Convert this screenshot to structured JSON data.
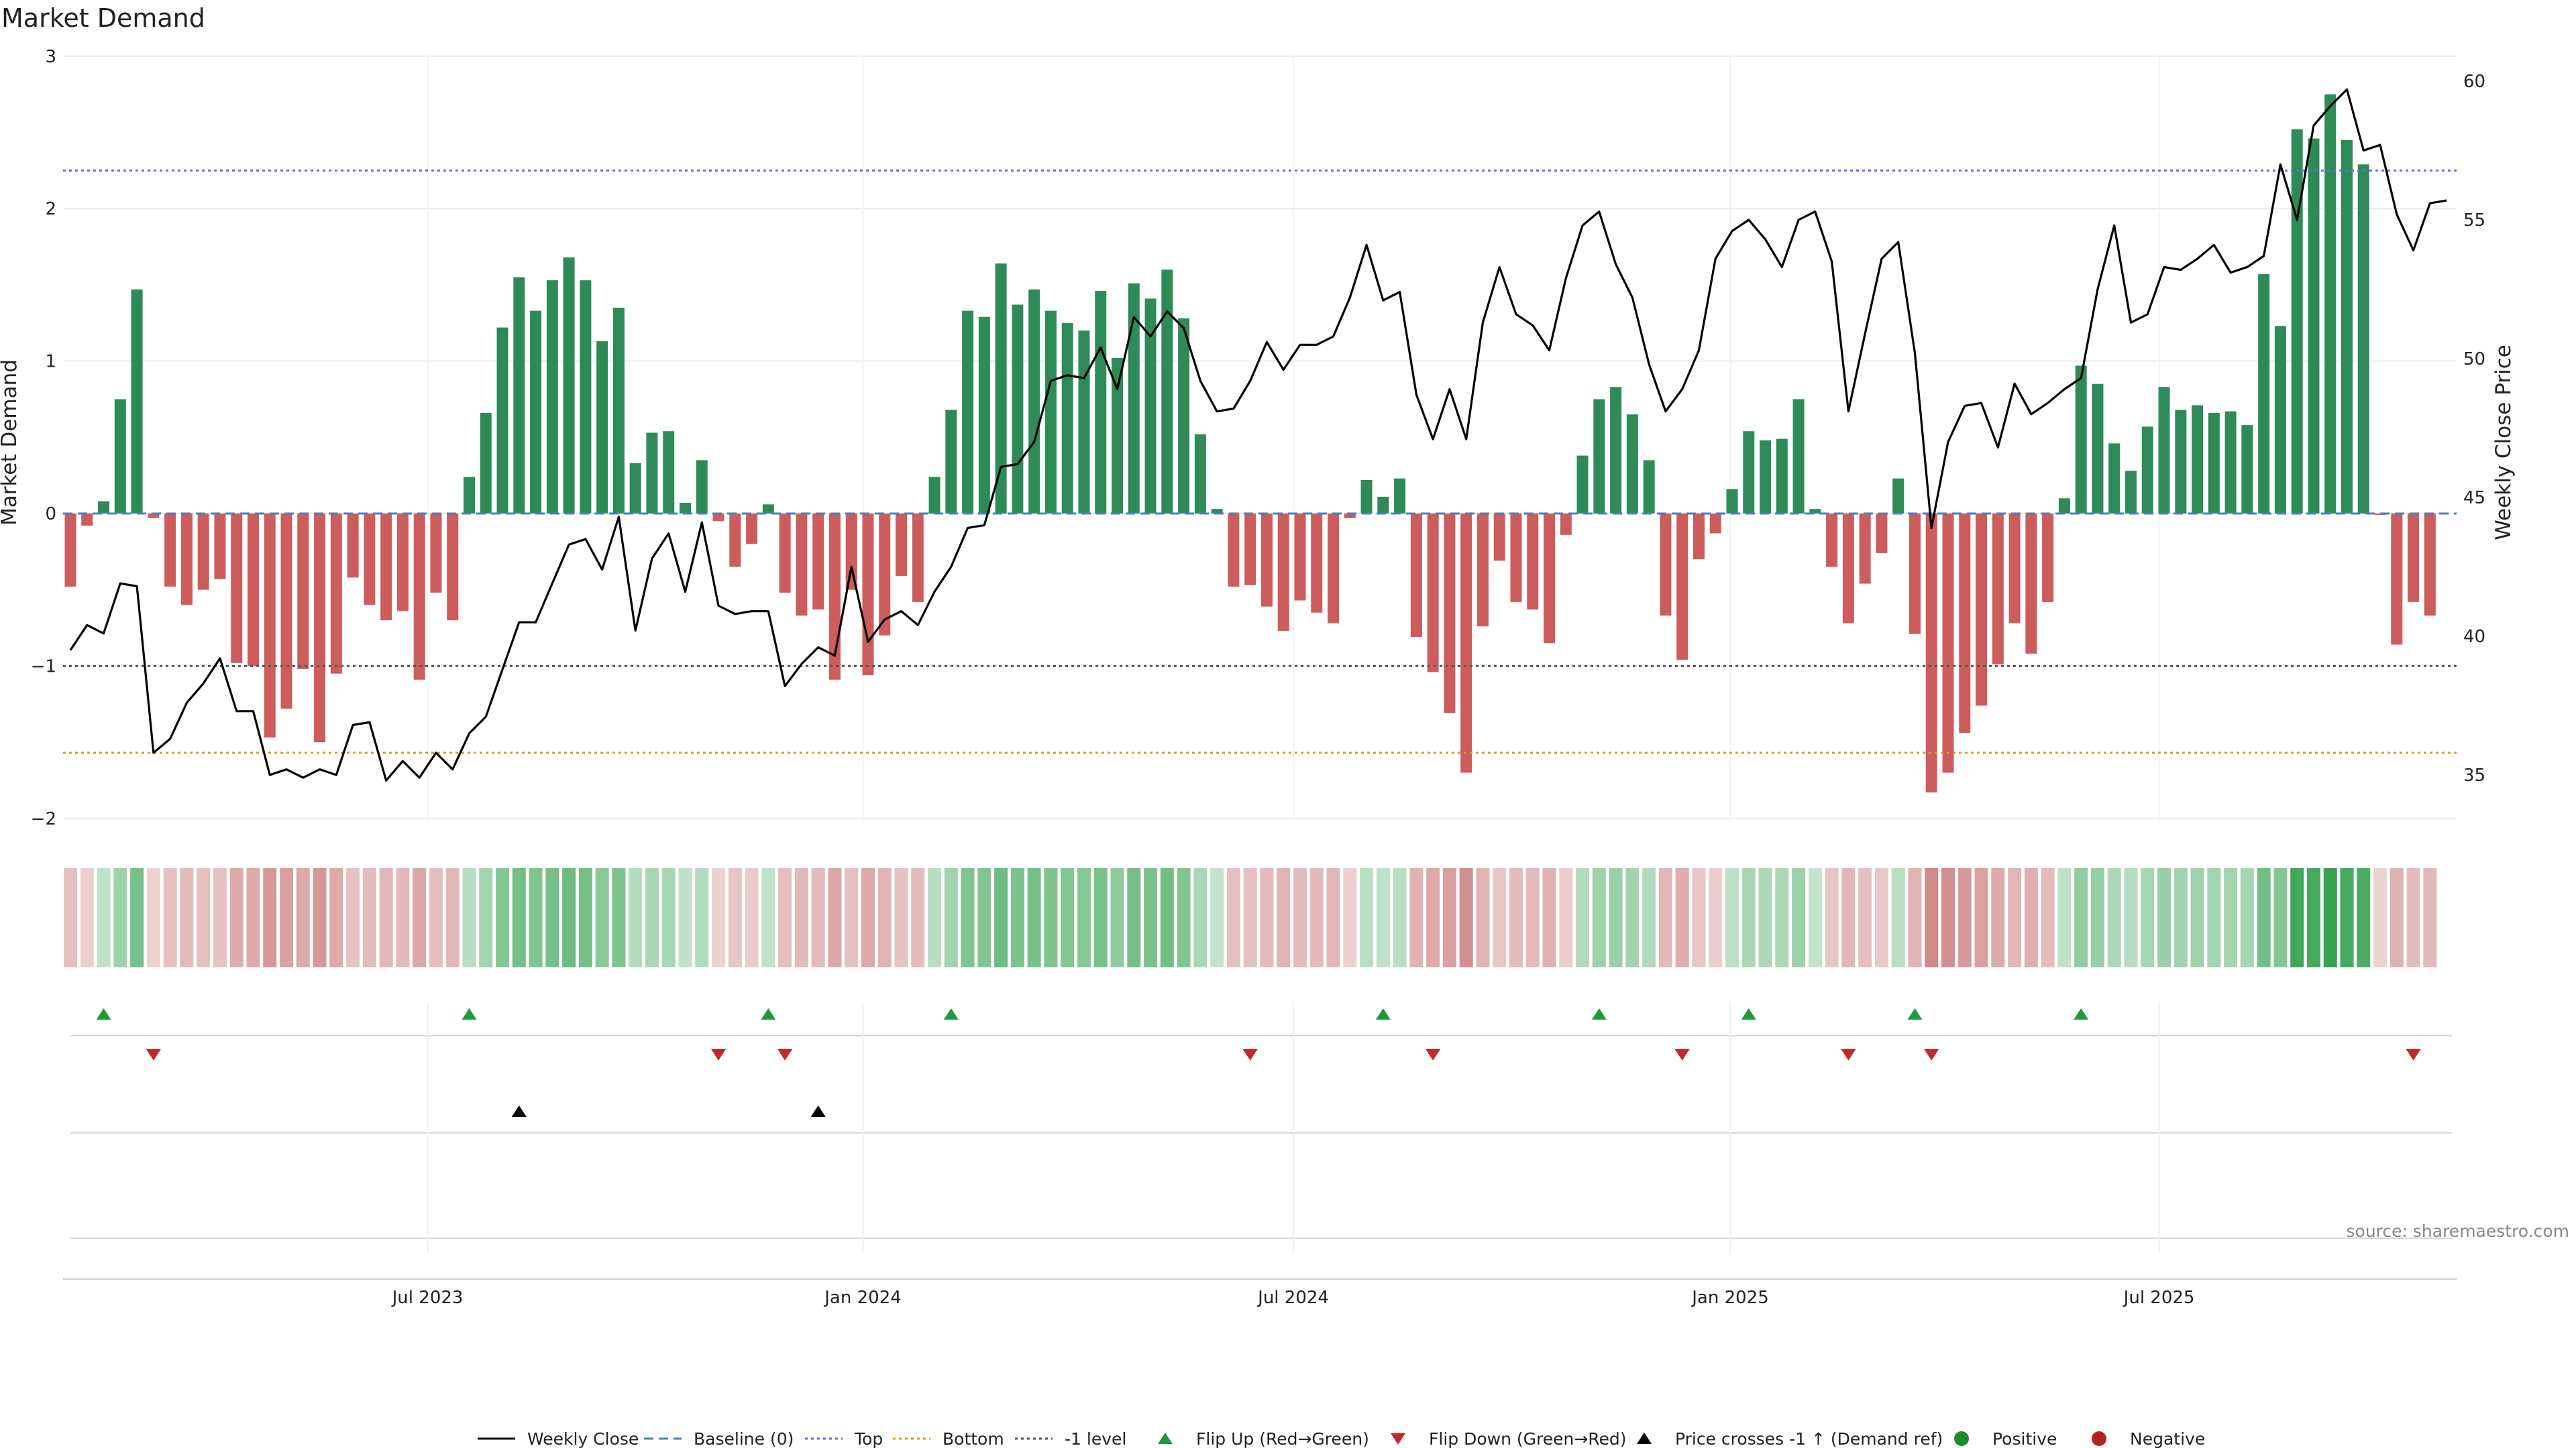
{
  "chart_data": {
    "type": "bar+line",
    "title": "Market Demand",
    "ylabel_left": "Market Demand",
    "ylabel_right": "Weekly Close Price",
    "ylim_left": [
      -2,
      3
    ],
    "ylim_right": [
      33,
      61
    ],
    "yticks_left": [
      {
        "v": 3,
        "label": "3"
      },
      {
        "v": 2,
        "label": "2"
      },
      {
        "v": 1,
        "label": "1"
      },
      {
        "v": 0,
        "label": "0"
      },
      {
        "v": -1,
        "label": "−1"
      },
      {
        "v": -2,
        "label": "−2"
      }
    ],
    "yticks_right": [
      {
        "v": 60,
        "label": "60"
      },
      {
        "v": 55,
        "label": "55"
      },
      {
        "v": 50,
        "label": "50"
      },
      {
        "v": 45,
        "label": "45"
      },
      {
        "v": 40,
        "label": "40"
      },
      {
        "v": 35,
        "label": "35"
      }
    ],
    "x_ticks": [
      {
        "i": 21.5,
        "label": "Jul 2023"
      },
      {
        "i": 47.7,
        "label": "Jan 2024"
      },
      {
        "i": 73.6,
        "label": "Jul 2024"
      },
      {
        "i": 99.9,
        "label": "Jan 2025"
      },
      {
        "i": 125.7,
        "label": "Jul 2025"
      }
    ],
    "reference_lines": {
      "top": 2.25,
      "bottom": -1.57,
      "minus_one": -1,
      "baseline": 0
    },
    "demand": [
      -0.48,
      -0.08,
      0.08,
      0.75,
      1.47,
      -0.03,
      -0.48,
      -0.6,
      -0.5,
      -0.43,
      -0.98,
      -1.0,
      -1.47,
      -1.28,
      -1.02,
      -1.5,
      -1.05,
      -0.42,
      -0.6,
      -0.7,
      -0.64,
      -1.09,
      -0.52,
      -0.7,
      0.24,
      0.66,
      1.22,
      1.55,
      1.33,
      1.53,
      1.68,
      1.53,
      1.13,
      1.35,
      0.33,
      0.53,
      0.54,
      0.07,
      0.35,
      -0.05,
      -0.35,
      -0.2,
      0.06,
      -0.52,
      -0.67,
      -0.63,
      -1.09,
      -0.5,
      -1.06,
      -0.8,
      -0.41,
      -0.58,
      0.24,
      0.68,
      1.33,
      1.29,
      1.64,
      1.37,
      1.47,
      1.33,
      1.25,
      1.2,
      1.46,
      1.02,
      1.51,
      1.41,
      1.6,
      1.28,
      0.52,
      0.03,
      -0.48,
      -0.47,
      -0.61,
      -0.77,
      -0.57,
      -0.65,
      -0.72,
      -0.03,
      0.22,
      0.11,
      0.23,
      -0.81,
      -1.04,
      -1.31,
      -1.7,
      -0.74,
      -0.31,
      -0.58,
      -0.63,
      -0.85,
      -0.14,
      0.38,
      0.75,
      0.83,
      0.65,
      0.35,
      -0.67,
      -0.96,
      -0.3,
      -0.13,
      0.16,
      0.54,
      0.48,
      0.49,
      0.75,
      0.03,
      -0.35,
      -0.72,
      -0.46,
      -0.26,
      0.23,
      -0.79,
      -1.83,
      -1.7,
      -1.44,
      -1.26,
      -0.99,
      -0.72,
      -0.92,
      -0.58,
      0.1,
      0.97,
      0.85,
      0.46,
      0.28,
      0.57,
      0.83,
      0.68,
      0.71,
      0.66,
      0.67,
      0.58,
      1.57,
      1.23,
      2.52,
      2.46,
      2.75,
      2.45,
      2.29,
      -0.01,
      -0.86,
      -0.58,
      -0.67
    ],
    "weekly_close": [
      39.5,
      40.4,
      40.1,
      41.9,
      41.8,
      35.8,
      36.3,
      37.6,
      38.3,
      39.2,
      37.3,
      37.3,
      35.0,
      35.2,
      34.9,
      35.2,
      35.0,
      36.8,
      36.9,
      34.8,
      35.5,
      34.9,
      35.8,
      35.2,
      36.5,
      37.1,
      38.8,
      40.5,
      40.5,
      41.9,
      43.3,
      43.5,
      42.4,
      44.3,
      40.2,
      42.8,
      43.7,
      41.6,
      44.1,
      41.1,
      40.8,
      40.9,
      40.9,
      38.2,
      39.0,
      39.6,
      39.3,
      42.5,
      39.8,
      40.6,
      40.9,
      40.4,
      41.6,
      42.5,
      43.9,
      44.0,
      46.1,
      46.2,
      47.0,
      49.2,
      49.4,
      49.3,
      50.4,
      48.9,
      51.5,
      50.8,
      51.7,
      51.1,
      49.2,
      48.1,
      48.2,
      49.2,
      50.6,
      49.6,
      50.5,
      50.5,
      50.8,
      52.2,
      54.1,
      52.1,
      52.4,
      48.7,
      47.1,
      48.9,
      47.1,
      51.3,
      53.3,
      51.6,
      51.2,
      50.3,
      52.9,
      54.8,
      55.3,
      53.4,
      52.2,
      49.8,
      48.1,
      48.9,
      50.3,
      53.6,
      54.6,
      55.0,
      54.3,
      53.3,
      55.0,
      55.3,
      53.5,
      48.1,
      50.9,
      53.6,
      54.2,
      50.2,
      43.9,
      47.0,
      48.3,
      48.4,
      46.8,
      49.1,
      48.0,
      48.4,
      48.9,
      49.3,
      52.5,
      54.8,
      51.3,
      51.6,
      53.3,
      53.2,
      53.6,
      54.1,
      53.1,
      53.3,
      53.7,
      57.0,
      55.0,
      58.4,
      59.1,
      59.7,
      57.5,
      57.7,
      55.2,
      53.9,
      55.6,
      55.7
    ],
    "signals": {
      "flip_up_idx": [
        2,
        24,
        42,
        53,
        79,
        92,
        101,
        111,
        121
      ],
      "flip_down_idx": [
        5,
        39,
        43,
        71,
        82,
        97,
        107,
        112,
        141
      ],
      "price_cross_idx": [
        27,
        45
      ]
    },
    "legend": [
      {
        "key": "weekly_close",
        "label": "Weekly Close"
      },
      {
        "key": "baseline",
        "label": "Baseline (0)"
      },
      {
        "key": "top",
        "label": "Top"
      },
      {
        "key": "bottom",
        "label": "Bottom"
      },
      {
        "key": "minus_one",
        "label": "-1 level"
      },
      {
        "key": "flip_up",
        "label": "Flip Up (Red→Green)"
      },
      {
        "key": "flip_down",
        "label": "Flip Down (Green→Red)"
      },
      {
        "key": "price_cross",
        "label": "Price crosses -1 ↑ (Demand ref)"
      },
      {
        "key": "positive",
        "label": "Positive"
      },
      {
        "key": "negative",
        "label": "Negative"
      }
    ],
    "source": "source: sharemaestro.com"
  },
  "colors": {
    "positive_bar": "#2e8b57",
    "negative_bar": "#cd5c5c",
    "price_line": "#000000",
    "baseline": "#4a7fc1",
    "top_line": "#6a6ad8",
    "bottom_line": "#d4a017",
    "minus_one_line": "#555566",
    "flip_up": "#1f9a3b",
    "flip_down": "#c62828",
    "price_cross": "#000000",
    "positive_dot": "#1e8b2e",
    "negative_dot": "#b22222",
    "heat_green": "#2e9e4a",
    "heat_red": "#c06060"
  }
}
